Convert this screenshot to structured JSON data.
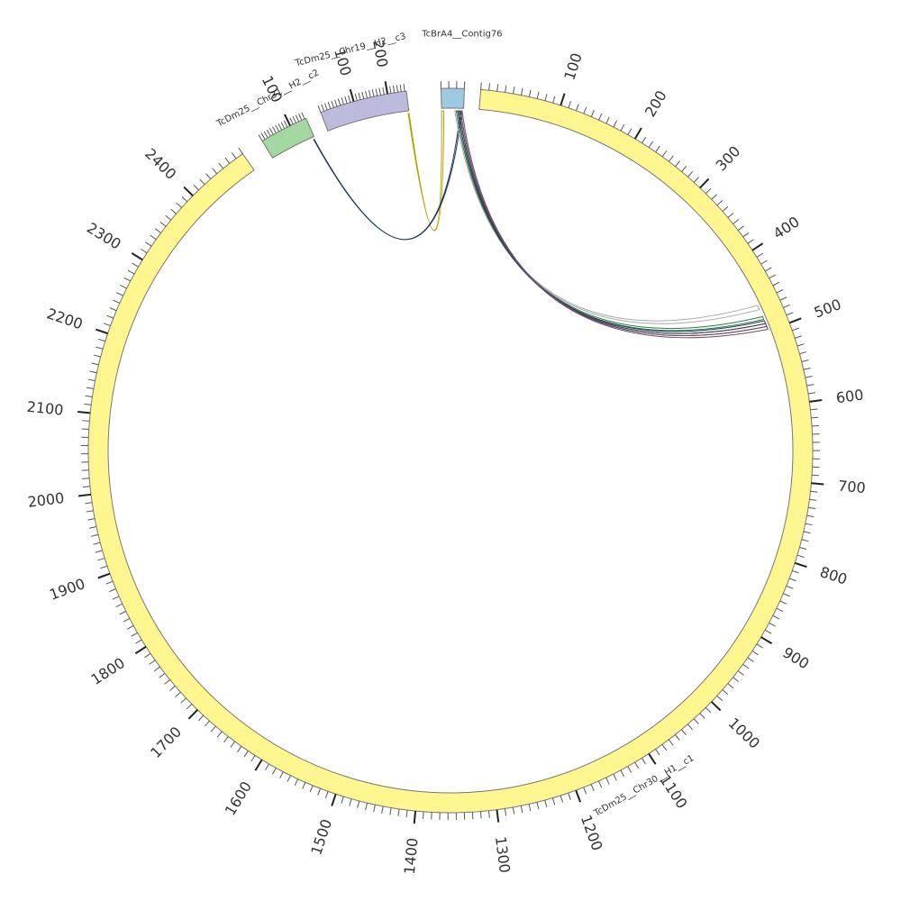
{
  "chart_data": {
    "type": "circos",
    "segments": [
      {
        "id": "c1",
        "label": "TcDm25__Chr30__H1__c1",
        "length": 2480,
        "color": "#fff68f",
        "tick_labels": [
          "100",
          "200",
          "300",
          "400",
          "500",
          "600",
          "700",
          "800",
          "900",
          "1000",
          "1100",
          "1200",
          "1300",
          "1400",
          "1500",
          "1600",
          "1700",
          "1800",
          "1900",
          "2000",
          "2100",
          "2200",
          "2300",
          "2400"
        ]
      },
      {
        "id": "c2",
        "label": "TcDm25__Chr31__H2__c2",
        "length": 155,
        "color": "#a3d9a0",
        "tick_labels": [
          "100"
        ]
      },
      {
        "id": "c3",
        "label": "TcDm25__Chr19__H2__c3",
        "length": 255,
        "color": "#bcbbdd",
        "tick_labels": [
          "100",
          "200"
        ]
      },
      {
        "id": "c4",
        "label": "TcBrA4__Contig76",
        "length": 30,
        "color": "#9ecae1",
        "tick_labels": []
      }
    ],
    "links": [
      {
        "from": "c4",
        "from_pos": [
          0,
          3
        ],
        "to": "c3",
        "to_pos": [
          252,
          255
        ],
        "color": "#b8a000"
      },
      {
        "from": "c4",
        "from_pos": [
          26,
          28
        ],
        "to": "c2",
        "to_pos": [
          150,
          152
        ],
        "color": "#1f3a5f"
      },
      {
        "from": "c4",
        "from_pos": [
          18,
          20
        ],
        "to": "c1",
        "to_pos": [
          464,
          470
        ],
        "color": "#a9a9a9"
      },
      {
        "from": "c4",
        "from_pos": [
          20,
          22
        ],
        "to": "c1",
        "to_pos": [
          480,
          484
        ],
        "color": "#2e7d4a"
      },
      {
        "from": "c4",
        "from_pos": [
          22,
          24
        ],
        "to": "c1",
        "to_pos": [
          486,
          490
        ],
        "color": "#1f3a5f"
      },
      {
        "from": "c4",
        "from_pos": [
          24,
          26
        ],
        "to": "c1",
        "to_pos": [
          490,
          494
        ],
        "color": "#444444"
      },
      {
        "from": "c4",
        "from_pos": [
          26,
          28
        ],
        "to": "c1",
        "to_pos": [
          494,
          498
        ],
        "color": "#6a4c6b"
      }
    ]
  }
}
